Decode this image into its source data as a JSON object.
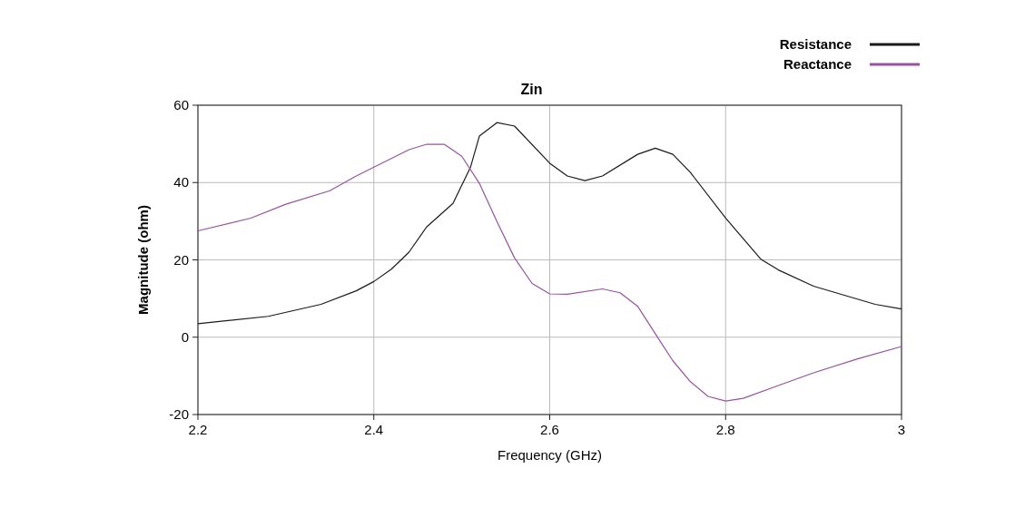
{
  "chart_data": {
    "type": "line",
    "title": "Zin",
    "xlabel": "Frequency (GHz)",
    "ylabel": "Magnitude (ohm)",
    "xlim": [
      2.2,
      3
    ],
    "xticks": [
      2.2,
      2.4,
      2.6,
      2.8,
      3
    ],
    "ylim": [
      -20,
      60
    ],
    "yticks": [
      -20,
      0,
      20,
      40,
      60
    ],
    "grid": true,
    "legend": "top right",
    "line_style": "solid",
    "series": [
      {
        "name": "Resistance",
        "color": "#1a1a1a",
        "x": [
          2.2,
          2.28,
          2.34,
          2.38,
          2.4,
          2.42,
          2.44,
          2.46,
          2.49,
          2.51,
          2.52,
          2.54,
          2.56,
          2.6,
          2.62,
          2.64,
          2.66,
          2.7,
          2.72,
          2.74,
          2.76,
          2.8,
          2.84,
          2.86,
          2.9,
          2.97,
          3.0
        ],
        "values": [
          3.5,
          5.4,
          8.5,
          12,
          14.4,
          17.6,
          22,
          28.5,
          34.6,
          44,
          52,
          55.5,
          54.6,
          45,
          41.7,
          40.5,
          41.7,
          47.3,
          48.9,
          47.3,
          42.6,
          30.8,
          20.2,
          17.4,
          13.2,
          8.5,
          7.3
        ]
      },
      {
        "name": "Reactance",
        "color": "#9b4fa6",
        "x": [
          2.2,
          2.26,
          2.3,
          2.35,
          2.38,
          2.44,
          2.46,
          2.48,
          2.5,
          2.52,
          2.54,
          2.56,
          2.58,
          2.6,
          2.62,
          2.66,
          2.68,
          2.7,
          2.72,
          2.74,
          2.76,
          2.78,
          2.8,
          2.82,
          2.86,
          2.9,
          2.95,
          3.0
        ],
        "values": [
          27.5,
          30.8,
          34.4,
          37.9,
          41.7,
          48.5,
          49.9,
          49.9,
          46.8,
          39.8,
          29.9,
          20.5,
          13.9,
          11.2,
          11.1,
          12.5,
          11.5,
          8,
          0.9,
          -6.1,
          -11.5,
          -15.3,
          -16.5,
          -15.8,
          -12.5,
          -9.2,
          -5.6,
          -2.4
        ]
      }
    ]
  }
}
